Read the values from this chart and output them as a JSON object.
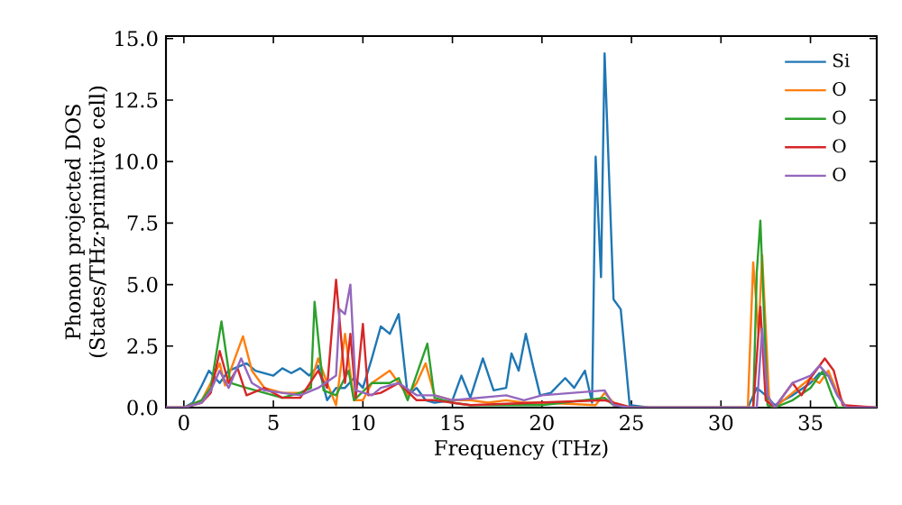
{
  "chart_data": {
    "type": "line",
    "xlabel": "Frequency (THz)",
    "ylabel": "Phonon projected DOS (States/THz·primitive cell)",
    "xlim": [
      -1,
      38.7
    ],
    "ylim": [
      0,
      15.1
    ],
    "xticks": [
      0,
      5,
      10,
      15,
      20,
      25,
      30,
      35
    ],
    "yticks": [
      {
        "value": 0,
        "label": "0.0"
      },
      {
        "value": 2.5,
        "label": "2.5"
      },
      {
        "value": 5,
        "label": "5.0"
      },
      {
        "value": 7.5,
        "label": "7.5"
      },
      {
        "value": 10,
        "label": "10.0"
      },
      {
        "value": 12.5,
        "label": "12.5"
      },
      {
        "value": 15,
        "label": "15.0"
      }
    ],
    "legend": "top right",
    "grid": false,
    "marker": "none",
    "line_style": "solid",
    "series": [
      {
        "name": "Si",
        "color": "#1f77b4",
        "x": [
          -1,
          0,
          0.5,
          1,
          1.4,
          2,
          2.5,
          3.5,
          4,
          5,
          5.5,
          6,
          6.5,
          7,
          7.5,
          8,
          8.5,
          9,
          9.5,
          10,
          10.5,
          11,
          11.5,
          12,
          12.5,
          13,
          13.5,
          14,
          15,
          15.5,
          16,
          16.7,
          17.3,
          18,
          18.3,
          18.7,
          19.1,
          19.5,
          19.9,
          20.5,
          21.3,
          21.8,
          22.4,
          22.8,
          23.0,
          23.3,
          23.5,
          24.0,
          24.4,
          24.9,
          26,
          31.5,
          32,
          32.5,
          33,
          34,
          35,
          35.5,
          36,
          36.5,
          37,
          38.7
        ],
        "values": [
          0,
          0,
          0.2,
          0.9,
          1.5,
          1.0,
          1.5,
          1.8,
          1.5,
          1.3,
          1.6,
          1.4,
          1.6,
          1.3,
          1.7,
          0.3,
          0.8,
          0.8,
          1.2,
          0.8,
          2.0,
          3.3,
          3.0,
          3.8,
          0.5,
          0.8,
          0.3,
          0.2,
          0.3,
          1.3,
          0.4,
          2.0,
          0.7,
          0.8,
          2.2,
          1.5,
          3.0,
          1.7,
          0.5,
          0.6,
          1.2,
          0.8,
          1.5,
          0.2,
          10.2,
          5.3,
          14.4,
          4.4,
          4.0,
          0.1,
          0,
          0,
          0.8,
          0.5,
          0.1,
          0.5,
          1.0,
          1.4,
          1.3,
          0.5,
          0,
          0
        ]
      },
      {
        "name": "O",
        "color": "#ff7f0e",
        "x": [
          -1,
          0,
          1,
          1.5,
          2,
          2.3,
          3.3,
          3.8,
          4.5,
          5.5,
          6.5,
          7,
          7.5,
          8,
          8.5,
          9,
          9.5,
          10,
          10.5,
          11.5,
          12,
          12.5,
          13,
          13.5,
          14,
          15,
          16,
          17,
          18,
          19,
          20,
          23,
          23.5,
          24,
          25,
          31.5,
          31.8,
          32.1,
          32.3,
          32.7,
          33,
          34,
          35,
          35.5,
          36,
          36.5,
          37,
          38.7
        ],
        "values": [
          0,
          0,
          0.3,
          1.0,
          1.8,
          0.9,
          2.9,
          1.5,
          0.8,
          0.6,
          0.6,
          0.8,
          2.0,
          1.0,
          0.1,
          3.0,
          0.3,
          0.3,
          1.0,
          1.5,
          1.0,
          0.5,
          1.0,
          1.8,
          0.5,
          0.3,
          0.3,
          0.2,
          0.3,
          0.2,
          0.2,
          0.1,
          0.6,
          0.2,
          0,
          0,
          5.9,
          3.0,
          6.2,
          0.2,
          0,
          0.6,
          1.2,
          1.0,
          1.5,
          0.6,
          0,
          0
        ]
      },
      {
        "name": "O",
        "color": "#2ca02c",
        "x": [
          -1,
          0,
          1,
          1.5,
          2.1,
          2.6,
          3.5,
          4.5,
          5.5,
          6.5,
          7.1,
          7.3,
          7.8,
          8.5,
          9.2,
          9.5,
          10.5,
          11.5,
          12,
          12.5,
          13.6,
          14,
          15,
          16,
          20,
          23.5,
          24,
          25,
          31.8,
          32,
          32.2,
          32.6,
          33,
          34,
          35,
          35.7,
          36.2,
          36.5,
          38.7
        ],
        "values": [
          0,
          0,
          0.3,
          0.8,
          3.5,
          1.0,
          0.8,
          0.6,
          0.4,
          0.6,
          0.8,
          4.3,
          0.7,
          0.5,
          1.5,
          0.3,
          1.0,
          1.0,
          1.2,
          0.3,
          2.6,
          0.4,
          0.2,
          0.1,
          0.1,
          0.4,
          0.1,
          0,
          0,
          5.5,
          7.6,
          0.1,
          0,
          0.3,
          0.8,
          1.5,
          0.5,
          0,
          0
        ]
      },
      {
        "name": "O",
        "color": "#d62728",
        "x": [
          -1,
          0,
          1,
          1.5,
          2,
          2.5,
          3,
          3.5,
          4.5,
          5.5,
          6.5,
          7.5,
          8,
          8.5,
          9,
          9.3,
          9.6,
          10,
          10.3,
          11,
          12,
          13,
          14,
          16,
          23.5,
          25,
          31.8,
          32.2,
          32.5,
          33,
          34,
          34.5,
          35,
          35.8,
          36.3,
          36.8,
          38.7
        ],
        "values": [
          0,
          0,
          0.2,
          0.6,
          2.3,
          1.0,
          1.6,
          0.5,
          0.8,
          0.4,
          0.4,
          1.5,
          0.8,
          5.2,
          1.0,
          3.0,
          0.4,
          3.4,
          0.5,
          0.6,
          1.0,
          0.3,
          0.3,
          0.1,
          0.3,
          0,
          0,
          4.1,
          0.3,
          0,
          1.0,
          0.5,
          1.2,
          2.0,
          1.5,
          0.1,
          0
        ]
      },
      {
        "name": "O",
        "color": "#9467bd",
        "x": [
          -1,
          0,
          1,
          1.5,
          2,
          2.5,
          3.2,
          3.8,
          4.5,
          5.5,
          6.5,
          7.5,
          8.5,
          8.7,
          9,
          9.3,
          9.6,
          10.5,
          11,
          12,
          13,
          14,
          15,
          18,
          19,
          20,
          23.5,
          24,
          25,
          32,
          32.3,
          32.6,
          33,
          34,
          35,
          35.5,
          36,
          36.5,
          37,
          38.7
        ],
        "values": [
          0,
          0,
          0.2,
          0.7,
          1.5,
          0.8,
          2.0,
          1.0,
          0.7,
          0.6,
          0.5,
          0.8,
          1.3,
          4.0,
          3.8,
          5.0,
          0.7,
          0.5,
          0.8,
          1.0,
          0.5,
          0.5,
          0.3,
          0.5,
          0.3,
          0.5,
          0.7,
          0.1,
          0,
          0,
          3.2,
          0.5,
          0,
          1.0,
          1.3,
          1.7,
          1.3,
          0.5,
          0,
          0
        ]
      }
    ]
  }
}
